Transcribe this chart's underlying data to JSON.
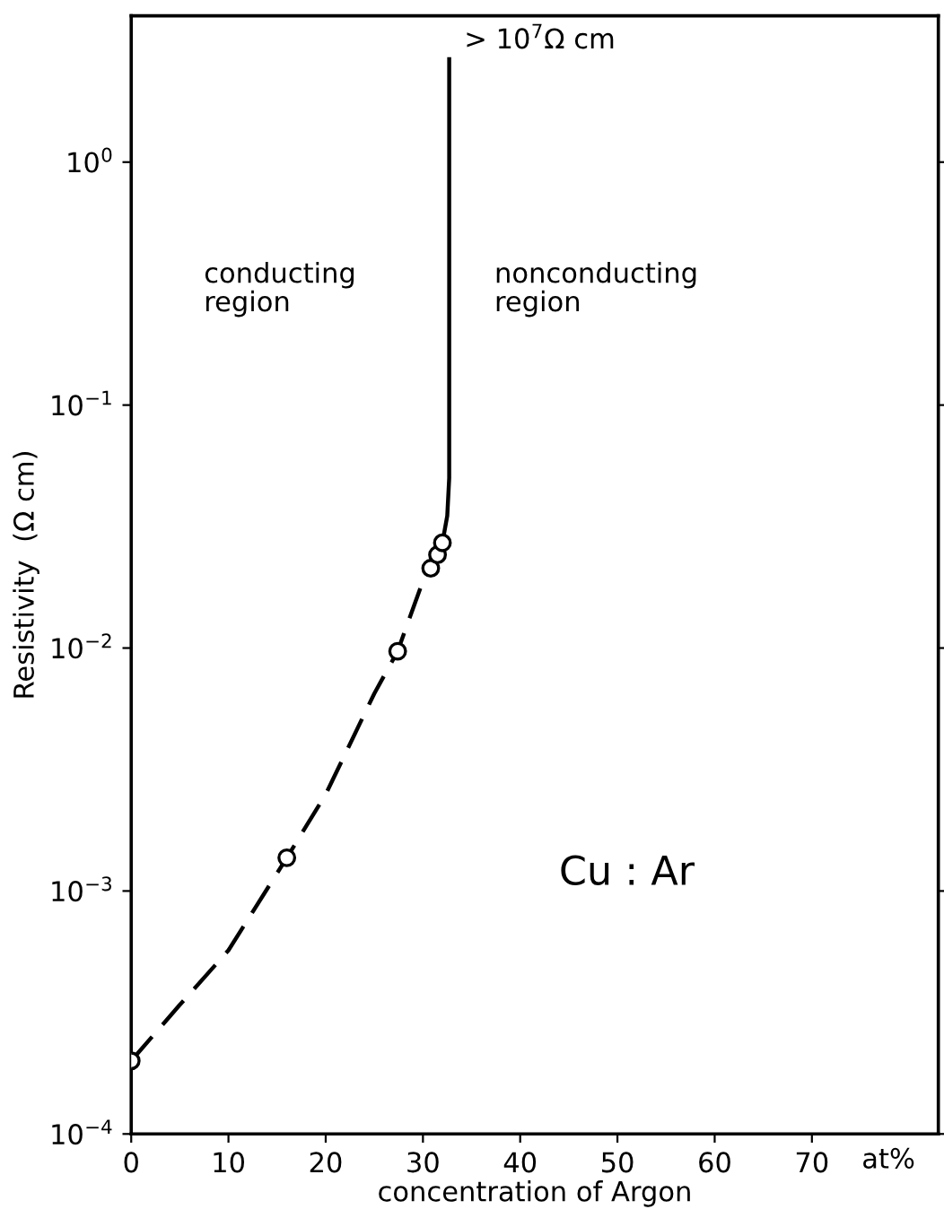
{
  "chart_data": {
    "type": "line",
    "xlabel": "concentration of Argon",
    "ylabel": "Resistivity  (Ω cm)",
    "log": "y",
    "xlim": [
      0,
      83
    ],
    "xticks": [
      0,
      10,
      20,
      30,
      40,
      50,
      60,
      70
    ],
    "ylim": [
      0.0001,
      4
    ],
    "yticks": [
      {
        "value": 0.0001,
        "label": "10$^{−4}$"
      },
      {
        "value": 0.001,
        "label": "10$^{−3}$"
      },
      {
        "value": 0.01,
        "label": "10$^{−2}$"
      },
      {
        "value": 0.1,
        "label": "10$^{−1}$"
      },
      {
        "value": 1,
        "label": "10$^{0}$"
      }
    ],
    "grid": false,
    "legend": false,
    "series": [
      {
        "line_style": "dashed",
        "marker": "none",
        "color": "#000000",
        "x": [
          0,
          5,
          10,
          16,
          20,
          25,
          27.4,
          30
        ],
        "values": [
          0.0002,
          0.00034,
          0.00057,
          0.00137,
          0.0025,
          0.0065,
          0.0097,
          0.0189
        ]
      },
      {
        "line_style": "solid",
        "marker": "none",
        "color": "#000000",
        "x": [
          30.8,
          31.5,
          32.0,
          32.5,
          32.7,
          32.7
        ],
        "values": [
          0.0213,
          0.0242,
          0.0271,
          0.035,
          0.05,
          2.65
        ]
      },
      {
        "type": "scatter",
        "marker": "circle",
        "color": "#000000",
        "x": [
          0,
          16,
          27.4,
          30.8,
          31.5,
          32.0
        ],
        "values": [
          0.0002,
          0.00137,
          0.0097,
          0.0213,
          0.0242,
          0.0271
        ]
      }
    ],
    "annotations": [
      {
        "text": "> 10$^{7}$Ω cm",
        "x": 32.7,
        "y": 2.65
      },
      "conducting\nregion",
      "nonconducting\nregion",
      "Cu : Ar",
      "at%"
    ]
  }
}
